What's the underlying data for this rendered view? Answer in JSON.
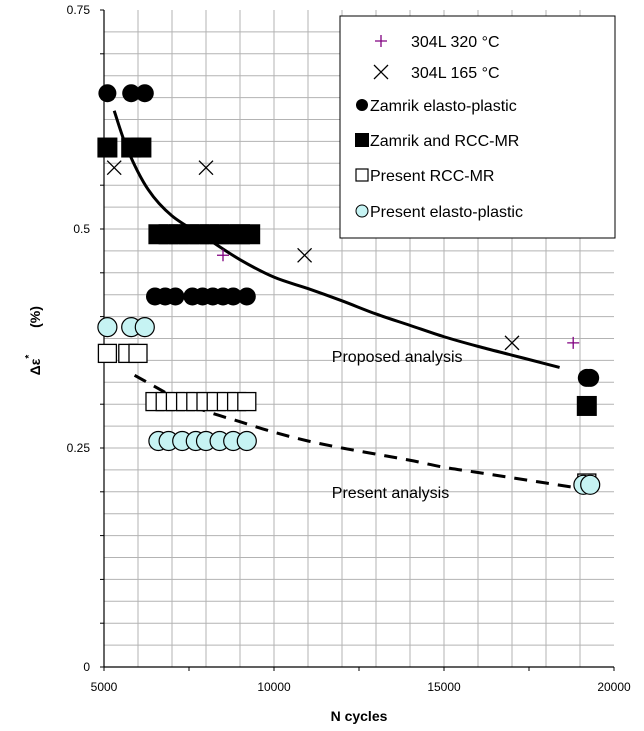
{
  "chart_data": {
    "type": "scatter",
    "xlabel": "N  cycles",
    "ylabel_main": "Δε",
    "ylabel_sup": "*",
    "ylabel_unit": "(%)",
    "xlim": [
      5000,
      20000
    ],
    "ylim": [
      0,
      0.75
    ],
    "x_ticks": [
      5000,
      10000,
      15000,
      20000
    ],
    "x_tick_labels": [
      "5000",
      "10000",
      "15000",
      "20000"
    ],
    "y_ticks": [
      0,
      0.25,
      0.5,
      0.75
    ],
    "y_tick_labels": [
      "0",
      "0.25",
      "0.5",
      "0.75"
    ],
    "grid": true,
    "legend_position": "top-right",
    "series": [
      {
        "name": "304L 320 °C",
        "marker": "plus",
        "color": "#800080",
        "points": [
          [
            8500,
            0.47
          ],
          [
            18800,
            0.37
          ]
        ]
      },
      {
        "name": "304L 165 °C",
        "marker": "x",
        "color": "#000000",
        "points": [
          [
            5300,
            0.57
          ],
          [
            8000,
            0.57
          ],
          [
            10900,
            0.47
          ],
          [
            17000,
            0.37
          ]
        ]
      },
      {
        "name": "Zamrik elasto-plastic",
        "marker": "filled-circle",
        "color": "#000000",
        "points": [
          [
            5100,
            0.655
          ],
          [
            5800,
            0.655
          ],
          [
            6200,
            0.655
          ],
          [
            6500,
            0.423
          ],
          [
            6800,
            0.423
          ],
          [
            7100,
            0.423
          ],
          [
            7600,
            0.423
          ],
          [
            7900,
            0.423
          ],
          [
            8200,
            0.423
          ],
          [
            8500,
            0.423
          ],
          [
            8800,
            0.423
          ],
          [
            9200,
            0.423
          ],
          [
            19200,
            0.33
          ],
          [
            19300,
            0.33
          ]
        ]
      },
      {
        "name": "Zamrik and RCC-MR",
        "marker": "filled-square",
        "color": "#000000",
        "points": [
          [
            5100,
            0.593
          ],
          [
            5800,
            0.593
          ],
          [
            6100,
            0.593
          ],
          [
            6600,
            0.494
          ],
          [
            6900,
            0.494
          ],
          [
            7200,
            0.494
          ],
          [
            7500,
            0.494
          ],
          [
            7800,
            0.494
          ],
          [
            8100,
            0.494
          ],
          [
            8400,
            0.494
          ],
          [
            8700,
            0.494
          ],
          [
            9000,
            0.494
          ],
          [
            9300,
            0.494
          ],
          [
            19200,
            0.298
          ]
        ]
      },
      {
        "name": "Present RCC-MR",
        "marker": "open-square",
        "color": "#000000",
        "points": [
          [
            5100,
            0.358
          ],
          [
            5700,
            0.358
          ],
          [
            6000,
            0.358
          ],
          [
            6500,
            0.303
          ],
          [
            6800,
            0.303
          ],
          [
            7100,
            0.303
          ],
          [
            7400,
            0.303
          ],
          [
            7700,
            0.303
          ],
          [
            8000,
            0.303
          ],
          [
            8300,
            0.303
          ],
          [
            8600,
            0.303
          ],
          [
            8900,
            0.303
          ],
          [
            9200,
            0.303
          ],
          [
            19200,
            0.21
          ]
        ]
      },
      {
        "name": "Present elasto-plastic",
        "marker": "cyan-circle",
        "color": "#c6f3f3",
        "points": [
          [
            5100,
            0.388
          ],
          [
            5800,
            0.388
          ],
          [
            6200,
            0.388
          ],
          [
            6600,
            0.258
          ],
          [
            6900,
            0.258
          ],
          [
            7300,
            0.258
          ],
          [
            7700,
            0.258
          ],
          [
            8000,
            0.258
          ],
          [
            8400,
            0.258
          ],
          [
            8800,
            0.258
          ],
          [
            9200,
            0.258
          ],
          [
            19100,
            0.208
          ],
          [
            19300,
            0.208
          ]
        ]
      }
    ],
    "curves": [
      {
        "label": "Proposed analysis",
        "style": "solid",
        "points": [
          [
            5300,
            0.635
          ],
          [
            5700,
            0.59
          ],
          [
            6300,
            0.545
          ],
          [
            7000,
            0.515
          ],
          [
            8000,
            0.49
          ],
          [
            9000,
            0.465
          ],
          [
            10000,
            0.445
          ],
          [
            11000,
            0.432
          ],
          [
            12000,
            0.418
          ],
          [
            13000,
            0.403
          ],
          [
            14000,
            0.39
          ],
          [
            15000,
            0.377
          ],
          [
            16000,
            0.366
          ],
          [
            17000,
            0.356
          ],
          [
            18000,
            0.346
          ],
          [
            18400,
            0.342
          ]
        ]
      },
      {
        "label": "Present analysis",
        "style": "dashed",
        "points": [
          [
            5900,
            0.333
          ],
          [
            6500,
            0.32
          ],
          [
            7200,
            0.305
          ],
          [
            8000,
            0.292
          ],
          [
            9000,
            0.28
          ],
          [
            10000,
            0.268
          ],
          [
            11000,
            0.258
          ],
          [
            12000,
            0.25
          ],
          [
            13000,
            0.243
          ],
          [
            14000,
            0.236
          ],
          [
            15000,
            0.228
          ],
          [
            16000,
            0.222
          ],
          [
            17000,
            0.216
          ],
          [
            18000,
            0.21
          ],
          [
            19000,
            0.204
          ]
        ]
      }
    ],
    "annotations": [
      {
        "text": "Proposed analysis",
        "x": 11700,
        "y": 0.355
      },
      {
        "text": "Present analysis",
        "x": 11700,
        "y": 0.2
      }
    ]
  }
}
